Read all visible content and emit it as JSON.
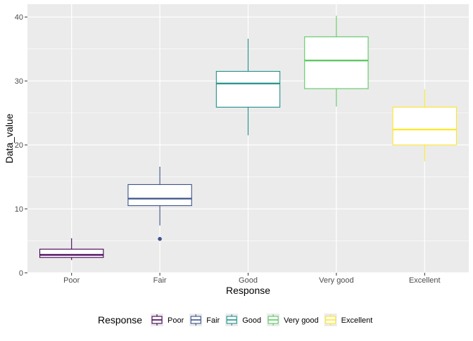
{
  "chart_data": {
    "type": "boxplot",
    "xlabel": "Response",
    "ylabel": "Data_value",
    "ylim": [
      0,
      42
    ],
    "yticks": [
      0,
      10,
      20,
      30,
      40
    ],
    "grid": true,
    "legend_position": "bottom",
    "legend_title": "Response",
    "categories": [
      "Poor",
      "Fair",
      "Good",
      "Very good",
      "Excellent"
    ],
    "boxes": [
      {
        "category": "Poor",
        "lower_whisker": 2.0,
        "q1": 2.4,
        "median": 2.8,
        "q3": 3.7,
        "upper_whisker": 5.4,
        "outliers": [],
        "color": "#440154"
      },
      {
        "category": "Fair",
        "lower_whisker": 7.4,
        "q1": 10.5,
        "median": 11.6,
        "q3": 13.8,
        "upper_whisker": 16.6,
        "outliers": [
          5.3
        ],
        "color": "#3B528B"
      },
      {
        "category": "Good",
        "lower_whisker": 21.5,
        "q1": 25.9,
        "median": 29.6,
        "q3": 31.5,
        "upper_whisker": 36.6,
        "outliers": [],
        "color": "#21908C"
      },
      {
        "category": "Very good",
        "lower_whisker": 26.0,
        "q1": 28.8,
        "median": 33.2,
        "q3": 36.9,
        "upper_whisker": 40.2,
        "outliers": [],
        "color": "#5DC863"
      },
      {
        "category": "Excellent",
        "lower_whisker": 17.4,
        "q1": 20.0,
        "median": 22.4,
        "q3": 25.9,
        "upper_whisker": 28.7,
        "outliers": [],
        "color": "#FDE725"
      }
    ]
  }
}
